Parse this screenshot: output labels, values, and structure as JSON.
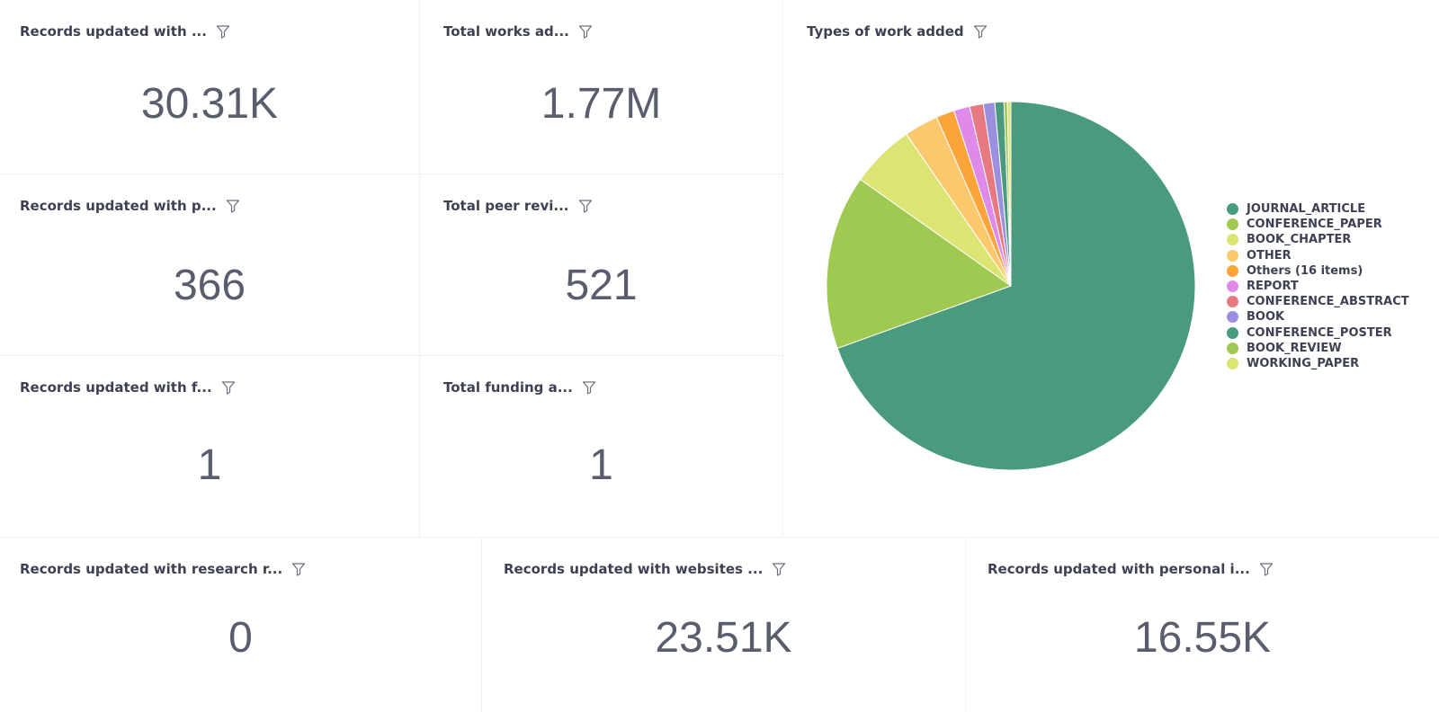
{
  "kpis": [
    {
      "title": "Records updated with ...",
      "value": "30.31K"
    },
    {
      "title": "Total works ad...",
      "value": "1.77M"
    },
    {
      "title": "Records updated with p...",
      "value": "366"
    },
    {
      "title": "Total peer revi...",
      "value": "521"
    },
    {
      "title": "Records updated with f...",
      "value": "1"
    },
    {
      "title": "Total funding a...",
      "value": "1"
    },
    {
      "title": "Records updated with research r...",
      "value": "0"
    },
    {
      "title": "Records updated with websites ...",
      "value": "23.51K"
    },
    {
      "title": "Records updated with personal i...",
      "value": "16.55K"
    }
  ],
  "pie_card": {
    "title": "Types of work added"
  },
  "icons": {
    "filter": "filter-icon"
  },
  "chart_data": {
    "type": "pie",
    "title": "Types of work added",
    "legend_position": "right",
    "slices": [
      {
        "label": "JOURNAL_ARTICLE",
        "value": 69.5,
        "color": "#4a9a7e"
      },
      {
        "label": "CONFERENCE_PAPER",
        "value": 15.3,
        "color": "#a0c952"
      },
      {
        "label": "BOOK_CHAPTER",
        "value": 5.6,
        "color": "#dce573"
      },
      {
        "label": "OTHER",
        "value": 3.0,
        "color": "#fbc86e"
      },
      {
        "label": "Others (16 items)",
        "value": 1.6,
        "color": "#fba43a"
      },
      {
        "label": "REPORT",
        "value": 1.4,
        "color": "#df8ae8"
      },
      {
        "label": "CONFERENCE_ABSTRACT",
        "value": 1.2,
        "color": "#e77a80"
      },
      {
        "label": "BOOK",
        "value": 1.0,
        "color": "#9b8fe0"
      },
      {
        "label": "CONFERENCE_POSTER",
        "value": 0.8,
        "color": "#4a9a7e"
      },
      {
        "label": "BOOK_REVIEW",
        "value": 0.3,
        "color": "#a0c952"
      },
      {
        "label": "WORKING_PAPER",
        "value": 0.3,
        "color": "#dce573"
      }
    ]
  }
}
